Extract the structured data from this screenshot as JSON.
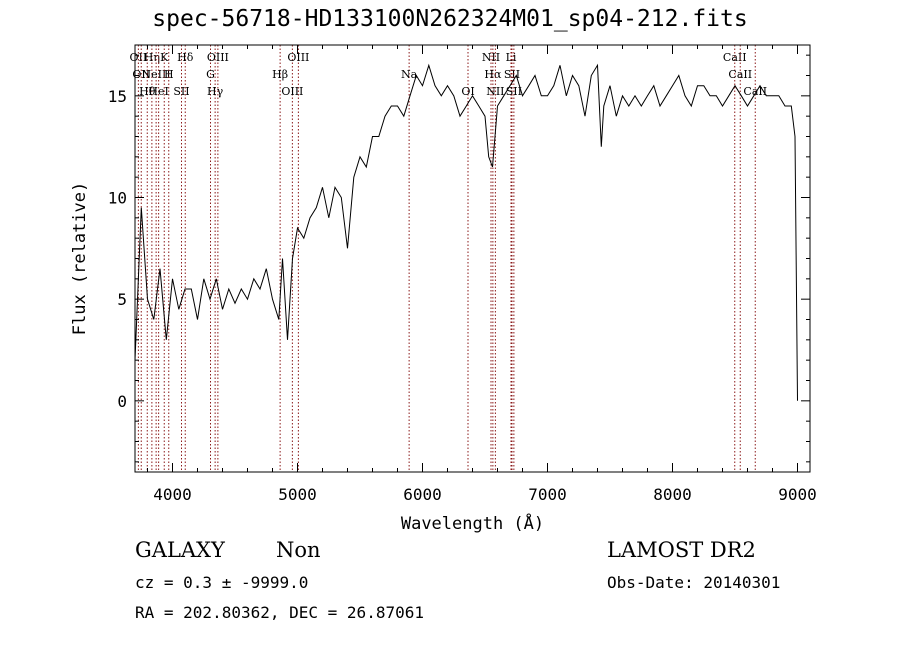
{
  "title": "spec-56718-HD133100N262324M01_sp04-212.fits",
  "footer": {
    "class": "GALAXY",
    "subclass": "Non",
    "survey": "LAMOST DR2",
    "cz": "cz = 0.3 ± -9999.0",
    "obs_date": "Obs-Date: 20140301",
    "coords": "RA = 202.80362, DEC =  26.87061"
  },
  "colors": {
    "axis": "#000000",
    "spectrum": "#000000",
    "line_marker": "#8b1a1a"
  },
  "chart_data": {
    "type": "line",
    "title": "spec-56718-HD133100N262324M01_sp04-212.fits",
    "xlabel": "Wavelength (Å)",
    "ylabel": "Flux (relative)",
    "xlim": [
      3700,
      9100
    ],
    "ylim": [
      -3.5,
      17.5
    ],
    "xticks": [
      4000,
      5000,
      6000,
      7000,
      8000,
      9000
    ],
    "yticks": [
      0,
      5,
      10,
      15
    ],
    "grid": false,
    "series": [
      {
        "x": [
          3700,
          3750,
          3800,
          3850,
          3900,
          3950,
          4000,
          4050,
          4100,
          4150,
          4200,
          4250,
          4300,
          4350,
          4400,
          4450,
          4500,
          4550,
          4600,
          4650,
          4700,
          4750,
          4800,
          4850,
          4880,
          4920,
          4960,
          5000,
          5050,
          5100,
          5150,
          5200,
          5250,
          5300,
          5350,
          5400,
          5450,
          5500,
          5550,
          5600,
          5650,
          5700,
          5750,
          5800,
          5850,
          5900,
          5950,
          6000,
          6050,
          6100,
          6150,
          6200,
          6250,
          6300,
          6350,
          6400,
          6450,
          6500,
          6530,
          6560,
          6600,
          6650,
          6700,
          6750,
          6800,
          6850,
          6900,
          6950,
          7000,
          7050,
          7100,
          7150,
          7200,
          7250,
          7300,
          7350,
          7400,
          7430,
          7450,
          7500,
          7550,
          7600,
          7650,
          7700,
          7750,
          7800,
          7850,
          7900,
          7950,
          8000,
          8050,
          8100,
          8150,
          8200,
          8250,
          8300,
          8350,
          8400,
          8450,
          8500,
          8550,
          8600,
          8650,
          8700,
          8750,
          8800,
          8850,
          8900,
          8950,
          8980,
          9000
        ],
        "y": [
          2.0,
          9.5,
          5.0,
          4.0,
          6.5,
          3.0,
          6.0,
          4.5,
          5.5,
          5.5,
          4.0,
          6.0,
          5.0,
          6.0,
          4.5,
          5.5,
          4.8,
          5.5,
          5.0,
          6.0,
          5.5,
          6.5,
          5.0,
          4.0,
          7.0,
          3.0,
          7.0,
          8.5,
          8.0,
          9.0,
          9.5,
          10.5,
          9.0,
          10.5,
          10.0,
          7.5,
          11.0,
          12.0,
          11.5,
          13.0,
          13.0,
          14.0,
          14.5,
          14.5,
          14.0,
          15.0,
          16.0,
          15.5,
          16.5,
          15.5,
          15.0,
          15.5,
          15.0,
          14.0,
          14.5,
          15.0,
          14.5,
          14.0,
          12.0,
          11.5,
          14.5,
          15.0,
          15.5,
          16.0,
          15.0,
          15.5,
          16.0,
          15.0,
          15.0,
          15.5,
          16.5,
          15.0,
          16.0,
          15.5,
          14.0,
          16.0,
          16.5,
          12.5,
          14.5,
          15.5,
          14.0,
          15.0,
          14.5,
          15.0,
          14.5,
          15.0,
          15.5,
          14.5,
          15.0,
          15.5,
          16.0,
          15.0,
          14.5,
          15.5,
          15.5,
          15.0,
          15.0,
          14.5,
          15.0,
          15.5,
          15.0,
          14.5,
          15.0,
          15.5,
          15.0,
          15.0,
          15.0,
          14.5,
          14.5,
          13.0,
          0.0
        ]
      }
    ],
    "lines": [
      {
        "wave": 3727,
        "labels": [
          "OII"
        ]
      },
      {
        "wave": 3750,
        "labels": [
          "OII"
        ]
      },
      {
        "wave": 3798,
        "labels": [
          "Hθ"
        ]
      },
      {
        "wave": 3835,
        "labels": [
          "Hη"
        ]
      },
      {
        "wave": 3869,
        "labels": [
          "NeIII"
        ]
      },
      {
        "wave": 3889,
        "labels": [
          "HeI"
        ]
      },
      {
        "wave": 3934,
        "labels": [
          "K"
        ]
      },
      {
        "wave": 3970,
        "labels": [
          "H"
        ]
      },
      {
        "wave": 4072,
        "labels": [
          "SII"
        ]
      },
      {
        "wave": 4102,
        "labels": [
          "Hδ"
        ]
      },
      {
        "wave": 4304,
        "labels": [
          "G"
        ]
      },
      {
        "wave": 4341,
        "labels": [
          "Hγ"
        ]
      },
      {
        "wave": 4363,
        "labels": [
          "OIII"
        ]
      },
      {
        "wave": 4861,
        "labels": [
          "Hβ"
        ]
      },
      {
        "wave": 4959,
        "labels": [
          "OIII"
        ]
      },
      {
        "wave": 5007,
        "labels": [
          "OIII"
        ]
      },
      {
        "wave": 5893,
        "labels": [
          "Na"
        ]
      },
      {
        "wave": 6364,
        "labels": [
          "OI"
        ]
      },
      {
        "wave": 6548,
        "labels": [
          "NII"
        ]
      },
      {
        "wave": 6563,
        "labels": [
          "Hα"
        ]
      },
      {
        "wave": 6583,
        "labels": [
          "NII"
        ]
      },
      {
        "wave": 6708,
        "labels": [
          "Li"
        ]
      },
      {
        "wave": 6716,
        "labels": [
          "SII"
        ]
      },
      {
        "wave": 6731,
        "labels": [
          "SII"
        ]
      },
      {
        "wave": 8498,
        "labels": [
          "CaII"
        ]
      },
      {
        "wave": 8542,
        "labels": [
          "CaII"
        ]
      },
      {
        "wave": 8662,
        "labels": [
          "CaII"
        ]
      }
    ]
  }
}
